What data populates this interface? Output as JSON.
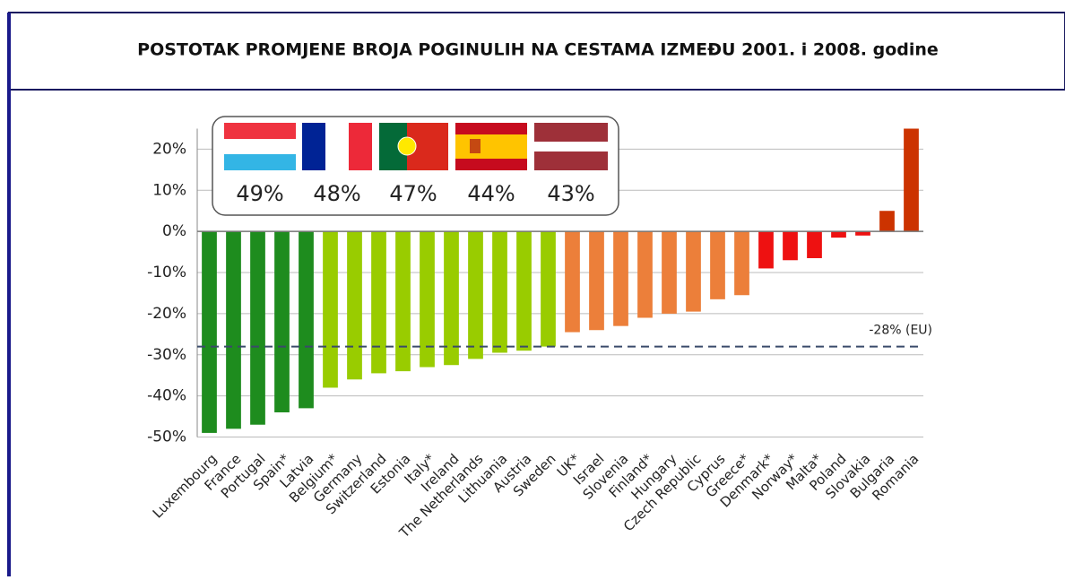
{
  "chart_data": {
    "type": "bar",
    "title": "POSTOTAK PROMJENE BROJA POGINULIH NA CESTAMA IZMEĐU 2001. i 2008. godine",
    "categories": [
      "Luxembourg",
      "France",
      "Portugal",
      "Spain*",
      "Latvia",
      "Belgium*",
      "Germany",
      "Switzerland",
      "Estonia",
      "Italy*",
      "Ireland",
      "The Netherlands",
      "Lithuania",
      "Austria",
      "Sweden",
      "UK*",
      "Israel",
      "Slovenia",
      "Finland*",
      "Hungary",
      "Czech Republic",
      "Cyprus",
      "Greece*",
      "Denmark*",
      "Norway*",
      "Malta*",
      "Poland",
      "Slovakia",
      "Bulgaria",
      "Romania"
    ],
    "values": [
      -49,
      -48,
      -47,
      -44,
      -43,
      -38,
      -36,
      -34.5,
      -34,
      -33,
      -32.5,
      -31,
      -29.5,
      -29,
      -28,
      -24.5,
      -24,
      -23,
      -21,
      -20,
      -19.5,
      -16.5,
      -15.5,
      -9,
      -7,
      -6.5,
      -1.5,
      -1,
      5,
      25
    ],
    "colors": [
      "#1e8c1e",
      "#1e8c1e",
      "#1e8c1e",
      "#1e8c1e",
      "#1e8c1e",
      "#99cc00",
      "#99cc00",
      "#99cc00",
      "#99cc00",
      "#99cc00",
      "#99cc00",
      "#99cc00",
      "#99cc00",
      "#99cc00",
      "#99cc00",
      "#ec7f3a",
      "#ec7f3a",
      "#ec7f3a",
      "#ec7f3a",
      "#ec7f3a",
      "#ec7f3a",
      "#ec7f3a",
      "#ec7f3a",
      "#ee1111",
      "#ee1111",
      "#ee1111",
      "#ee1111",
      "#ee1111",
      "#cc3300",
      "#cc3300"
    ],
    "ylim": [
      -50,
      25
    ],
    "yticks": [
      {
        "value": -50,
        "label": "-50%"
      },
      {
        "value": -40,
        "label": "-40%"
      },
      {
        "value": -30,
        "label": "-30%"
      },
      {
        "value": -20,
        "label": "-20%"
      },
      {
        "value": -10,
        "label": "-10%"
      },
      {
        "value": 0,
        "label": "0%"
      },
      {
        "value": 10,
        "label": "10%"
      },
      {
        "value": 20,
        "label": "20%"
      }
    ],
    "grid": true,
    "reference_line": {
      "value": -28,
      "label": "-28% (EU)"
    },
    "annotations": [
      "49%",
      "48%",
      "47%",
      "44%",
      "43%"
    ]
  }
}
